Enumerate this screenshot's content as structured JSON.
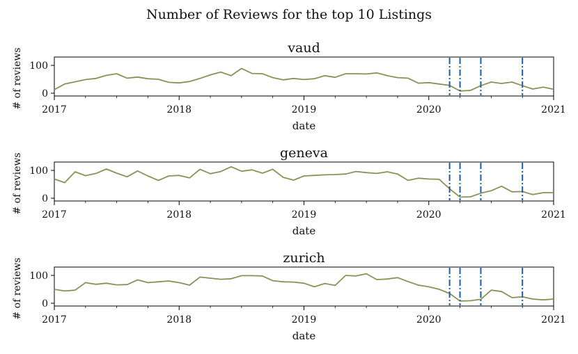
{
  "figure": {
    "title": "Number of Reviews for the top 10 Listings"
  },
  "colors": {
    "line": "#8a9155",
    "vline": "#1a5fa8",
    "axis": "#000000"
  },
  "chart_data": [
    {
      "type": "line",
      "title": "vaud",
      "xlabel": "date",
      "ylabel": "# of reviews",
      "x_ticks": [
        "2017",
        "2018",
        "2019",
        "2020",
        "2021"
      ],
      "y_ticks": [
        0,
        100
      ],
      "ylim": [
        -10,
        130
      ],
      "xlim": [
        "2017-01",
        "2021-01"
      ],
      "grid": false,
      "x": [
        "2017-01",
        "2017-02",
        "2017-03",
        "2017-04",
        "2017-05",
        "2017-06",
        "2017-07",
        "2017-08",
        "2017-09",
        "2017-10",
        "2017-11",
        "2017-12",
        "2018-01",
        "2018-02",
        "2018-03",
        "2018-04",
        "2018-05",
        "2018-06",
        "2018-07",
        "2018-08",
        "2018-09",
        "2018-10",
        "2018-11",
        "2018-12",
        "2019-01",
        "2019-02",
        "2019-03",
        "2019-04",
        "2019-05",
        "2019-06",
        "2019-07",
        "2019-08",
        "2019-09",
        "2019-10",
        "2019-11",
        "2019-12",
        "2020-01",
        "2020-02",
        "2020-03",
        "2020-04",
        "2020-05",
        "2020-06",
        "2020-07",
        "2020-08",
        "2020-09",
        "2020-10",
        "2020-11",
        "2020-12",
        "2021-01"
      ],
      "series": [
        {
          "values": [
            13,
            33,
            41,
            49,
            53,
            64,
            70,
            54,
            58,
            52,
            50,
            39,
            37,
            42,
            53,
            66,
            76,
            63,
            89,
            71,
            70,
            56,
            48,
            53,
            49,
            52,
            63,
            57,
            70,
            70,
            69,
            73,
            63,
            56,
            54,
            36,
            38,
            33,
            28,
            8,
            10,
            27,
            40,
            35,
            40,
            27,
            15,
            22,
            14
          ]
        }
      ],
      "vlines": [
        "2020-03",
        "2020-04",
        "2020-06",
        "2020-10"
      ]
    },
    {
      "type": "line",
      "title": "geneva",
      "xlabel": "date",
      "ylabel": "# of reviews",
      "x_ticks": [
        "2017",
        "2018",
        "2019",
        "2020",
        "2021"
      ],
      "y_ticks": [
        0,
        100
      ],
      "ylim": [
        -10,
        130
      ],
      "xlim": [
        "2017-01",
        "2021-01"
      ],
      "grid": false,
      "x": [
        "2017-01",
        "2017-02",
        "2017-03",
        "2017-04",
        "2017-05",
        "2017-06",
        "2017-07",
        "2017-08",
        "2017-09",
        "2017-10",
        "2017-11",
        "2017-12",
        "2018-01",
        "2018-02",
        "2018-03",
        "2018-04",
        "2018-05",
        "2018-06",
        "2018-07",
        "2018-08",
        "2018-09",
        "2018-10",
        "2018-11",
        "2018-12",
        "2019-01",
        "2019-02",
        "2019-03",
        "2019-04",
        "2019-05",
        "2019-06",
        "2019-07",
        "2019-08",
        "2019-09",
        "2019-10",
        "2019-11",
        "2019-12",
        "2020-01",
        "2020-02",
        "2020-03",
        "2020-04",
        "2020-05",
        "2020-06",
        "2020-07",
        "2020-08",
        "2020-09",
        "2020-10",
        "2020-11",
        "2020-12",
        "2021-01"
      ],
      "series": [
        {
          "values": [
            69,
            56,
            95,
            81,
            89,
            105,
            90,
            77,
            98,
            80,
            64,
            80,
            82,
            73,
            104,
            88,
            96,
            113,
            97,
            102,
            90,
            104,
            75,
            65,
            80,
            82,
            84,
            85,
            87,
            96,
            92,
            89,
            95,
            87,
            64,
            72,
            69,
            68,
            34,
            4,
            5,
            18,
            27,
            43,
            23,
            24,
            13,
            20,
            20
          ]
        }
      ],
      "vlines": [
        "2020-03",
        "2020-04",
        "2020-06",
        "2020-10"
      ]
    },
    {
      "type": "line",
      "title": "zurich",
      "xlabel": "date",
      "ylabel": "# of reviews",
      "x_ticks": [
        "2017",
        "2018",
        "2019",
        "2020",
        "2021"
      ],
      "y_ticks": [
        0,
        100
      ],
      "ylim": [
        -10,
        130
      ],
      "xlim": [
        "2017-01",
        "2021-01"
      ],
      "grid": false,
      "x": [
        "2017-01",
        "2017-02",
        "2017-03",
        "2017-04",
        "2017-05",
        "2017-06",
        "2017-07",
        "2017-08",
        "2017-09",
        "2017-10",
        "2017-11",
        "2017-12",
        "2018-01",
        "2018-02",
        "2018-03",
        "2018-04",
        "2018-05",
        "2018-06",
        "2018-07",
        "2018-08",
        "2018-09",
        "2018-10",
        "2018-11",
        "2018-12",
        "2019-01",
        "2019-02",
        "2019-03",
        "2019-04",
        "2019-05",
        "2019-06",
        "2019-07",
        "2019-08",
        "2019-09",
        "2019-10",
        "2019-11",
        "2019-12",
        "2020-01",
        "2020-02",
        "2020-03",
        "2020-04",
        "2020-05",
        "2020-06",
        "2020-07",
        "2020-08",
        "2020-09",
        "2020-10",
        "2020-11",
        "2020-12",
        "2021-01"
      ],
      "series": [
        {
          "values": [
            50,
            44,
            47,
            74,
            68,
            72,
            66,
            67,
            84,
            74,
            77,
            80,
            74,
            65,
            94,
            90,
            86,
            88,
            99,
            99,
            98,
            81,
            77,
            76,
            72,
            59,
            71,
            64,
            100,
            98,
            106,
            85,
            87,
            92,
            78,
            65,
            59,
            50,
            35,
            8,
            9,
            14,
            47,
            42,
            20,
            23,
            15,
            12,
            15
          ]
        }
      ],
      "vlines": [
        "2020-03",
        "2020-04",
        "2020-06",
        "2020-10"
      ]
    }
  ]
}
